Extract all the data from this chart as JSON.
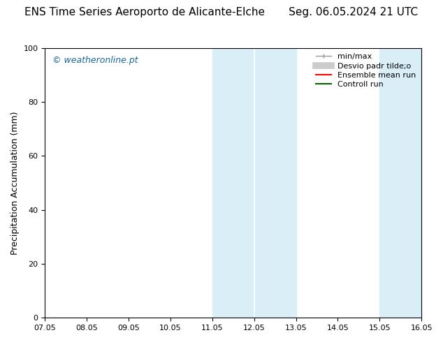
{
  "title": "ENS Time Series Aeroporto de Alicante-Elche       Seg. 06.05.2024 21 UTC",
  "ylabel": "Precipitation Accumulation (mm)",
  "watermark": "© weatheronline.pt",
  "watermark_color": "#1a6699",
  "ylim": [
    0,
    100
  ],
  "yticks": [
    0,
    20,
    40,
    60,
    80,
    100
  ],
  "xtick_labels": [
    "07.05",
    "08.05",
    "09.05",
    "10.05",
    "11.05",
    "12.05",
    "13.05",
    "14.05",
    "15.05",
    "16.05"
  ],
  "xmin": 0,
  "xmax": 9,
  "shaded_regions": [
    {
      "x_start": 4.0,
      "x_end": 4.5,
      "color": "#d8edf8"
    },
    {
      "x_start": 4.5,
      "x_end": 6.0,
      "color": "#daedf9"
    },
    {
      "x_start": 7.5,
      "x_end": 8.0,
      "color": "#d8edf8"
    },
    {
      "x_start": 8.0,
      "x_end": 9.0,
      "color": "#daedf9"
    }
  ],
  "bg_color": "#ffffff",
  "plot_bg_color": "#ffffff",
  "title_fontsize": 11,
  "tick_fontsize": 8,
  "legend_fontsize": 8,
  "ylabel_fontsize": 9
}
